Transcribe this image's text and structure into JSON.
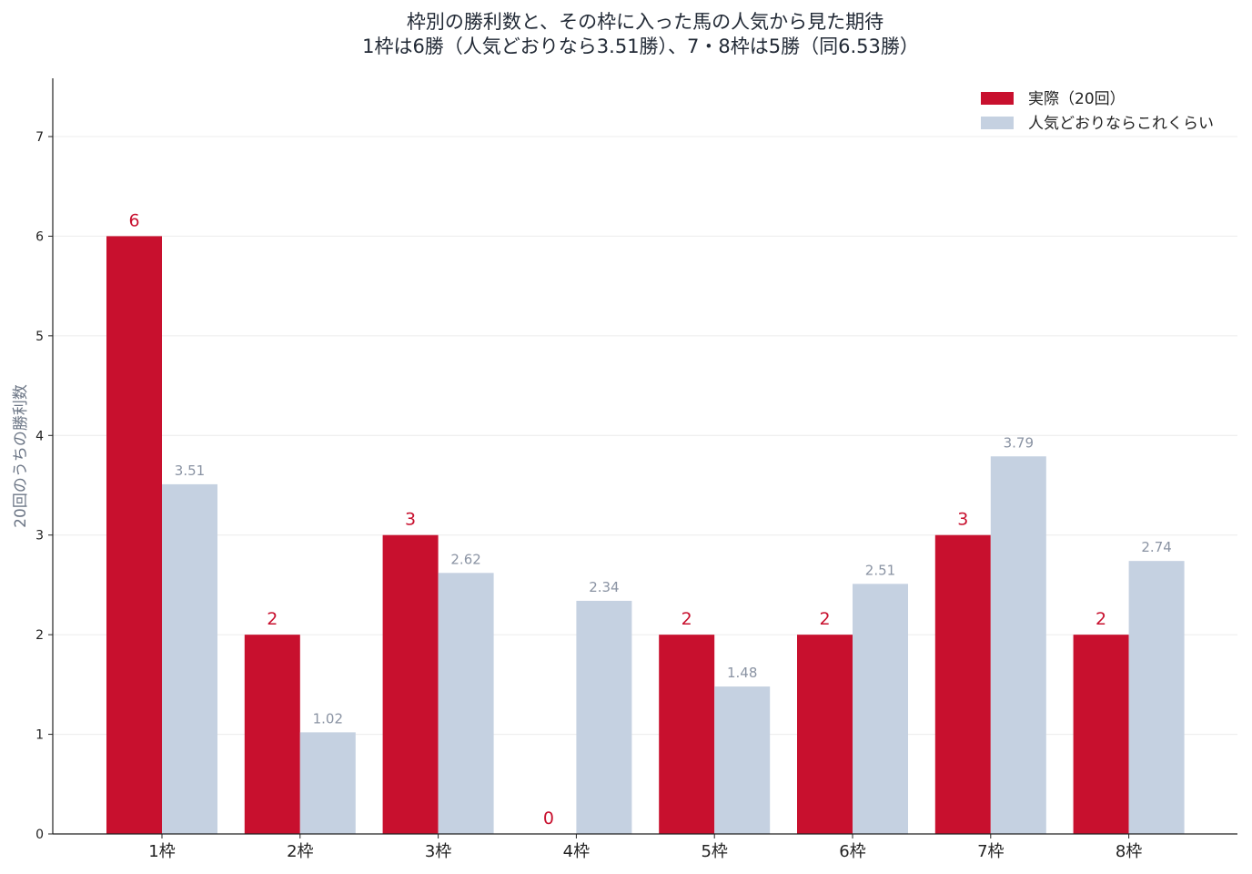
{
  "chart_data": {
    "type": "bar",
    "title_lines": [
      "枠別の勝利数と、その枠に入った馬の人気から見た期待",
      "1枠は6勝（人気どおりなら3.51勝）、7・8枠は5勝（同6.53勝）"
    ],
    "ylabel": "20回のうちの勝利数",
    "xlabel": "",
    "categories": [
      "1枠",
      "2枠",
      "3枠",
      "4枠",
      "5枠",
      "6枠",
      "7枠",
      "8枠"
    ],
    "series": [
      {
        "name": "実際（20回）",
        "color": "#c8102e",
        "values": [
          6,
          2,
          3,
          0,
          2,
          2,
          3,
          2
        ],
        "labels": [
          "6",
          "2",
          "3",
          "0",
          "2",
          "2",
          "3",
          "2"
        ]
      },
      {
        "name": "人気どおりならこれくらい",
        "color": "#c5d1e1",
        "values": [
          3.51,
          1.02,
          2.62,
          2.34,
          1.48,
          2.51,
          3.79,
          2.74
        ],
        "labels": [
          "3.51",
          "1.02",
          "2.62",
          "2.34",
          "1.48",
          "2.51",
          "3.79",
          "2.74"
        ]
      }
    ],
    "ylim": [
      0,
      7.6
    ],
    "yticks": [
      "0",
      "1",
      "2",
      "3",
      "4",
      "5",
      "6",
      "7"
    ],
    "grid": true,
    "legend_position": "top-right"
  }
}
